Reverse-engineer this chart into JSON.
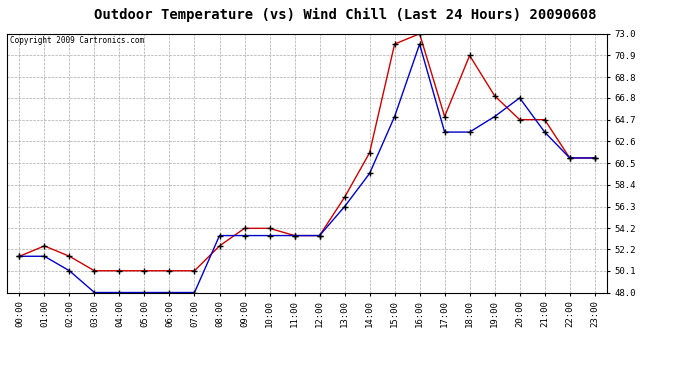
{
  "title": "Outdoor Temperature (vs) Wind Chill (Last 24 Hours) 20090608",
  "copyright": "Copyright 2009 Cartronics.com",
  "x_labels": [
    "00:00",
    "01:00",
    "02:00",
    "03:00",
    "04:00",
    "05:00",
    "06:00",
    "07:00",
    "08:00",
    "09:00",
    "10:00",
    "11:00",
    "12:00",
    "13:00",
    "14:00",
    "15:00",
    "16:00",
    "17:00",
    "18:00",
    "19:00",
    "20:00",
    "21:00",
    "22:00",
    "23:00"
  ],
  "temp": [
    51.5,
    52.5,
    51.5,
    50.1,
    50.1,
    50.1,
    50.1,
    50.1,
    52.5,
    54.2,
    54.2,
    53.5,
    53.5,
    57.2,
    61.5,
    72.0,
    73.0,
    65.0,
    70.9,
    67.0,
    64.7,
    64.7,
    61.0,
    61.0
  ],
  "wind_chill": [
    51.5,
    51.5,
    50.1,
    48.0,
    48.0,
    48.0,
    48.0,
    48.0,
    53.5,
    53.5,
    53.5,
    53.5,
    53.5,
    56.3,
    59.5,
    65.0,
    72.0,
    63.5,
    63.5,
    65.0,
    66.8,
    63.5,
    61.0,
    61.0
  ],
  "ylim": [
    48.0,
    73.0
  ],
  "yticks": [
    48.0,
    50.1,
    52.2,
    54.2,
    56.3,
    58.4,
    60.5,
    62.6,
    64.7,
    66.8,
    68.8,
    70.9,
    73.0
  ],
  "temp_color": "#cc0000",
  "wind_chill_color": "#0000cc",
  "bg_color": "#ffffff",
  "grid_color": "#aaaaaa",
  "title_fontsize": 10,
  "tick_fontsize": 6.5
}
